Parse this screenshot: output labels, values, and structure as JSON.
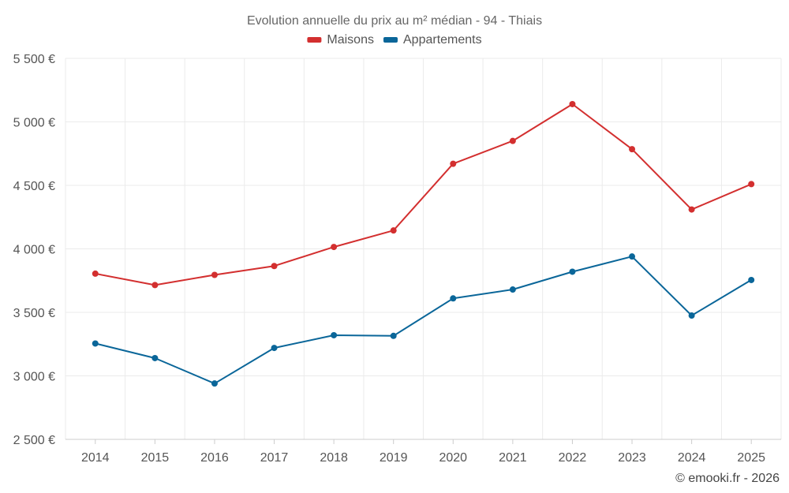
{
  "chart_data": {
    "type": "line",
    "title": "Evolution annuelle du prix au m² médian - 94 - Thiais",
    "categories": [
      "2014",
      "2015",
      "2016",
      "2017",
      "2018",
      "2019",
      "2020",
      "2021",
      "2022",
      "2023",
      "2024",
      "2025"
    ],
    "series": [
      {
        "name": "Maisons",
        "color": "#d32f2f",
        "values": [
          3805,
          3715,
          3795,
          3865,
          4015,
          4145,
          4670,
          4850,
          5140,
          4785,
          4310,
          4510
        ]
      },
      {
        "name": "Appartements",
        "color": "#0a6699",
        "values": [
          3255,
          3140,
          2940,
          3220,
          3320,
          3315,
          3610,
          3680,
          3820,
          3940,
          3475,
          3755
        ]
      }
    ],
    "ylim": [
      2500,
      5500
    ],
    "yticks": [
      2500,
      3000,
      3500,
      4000,
      4500,
      5000,
      5500
    ],
    "ytick_labels": [
      "2 500 €",
      "3 000 €",
      "3 500 €",
      "4 000 €",
      "4 500 €",
      "5 000 €",
      "5 500 €"
    ],
    "xlabel": "",
    "ylabel": "",
    "grid": true,
    "legend_position": "top-center"
  },
  "copyright": "© emooki.fr - 2026"
}
